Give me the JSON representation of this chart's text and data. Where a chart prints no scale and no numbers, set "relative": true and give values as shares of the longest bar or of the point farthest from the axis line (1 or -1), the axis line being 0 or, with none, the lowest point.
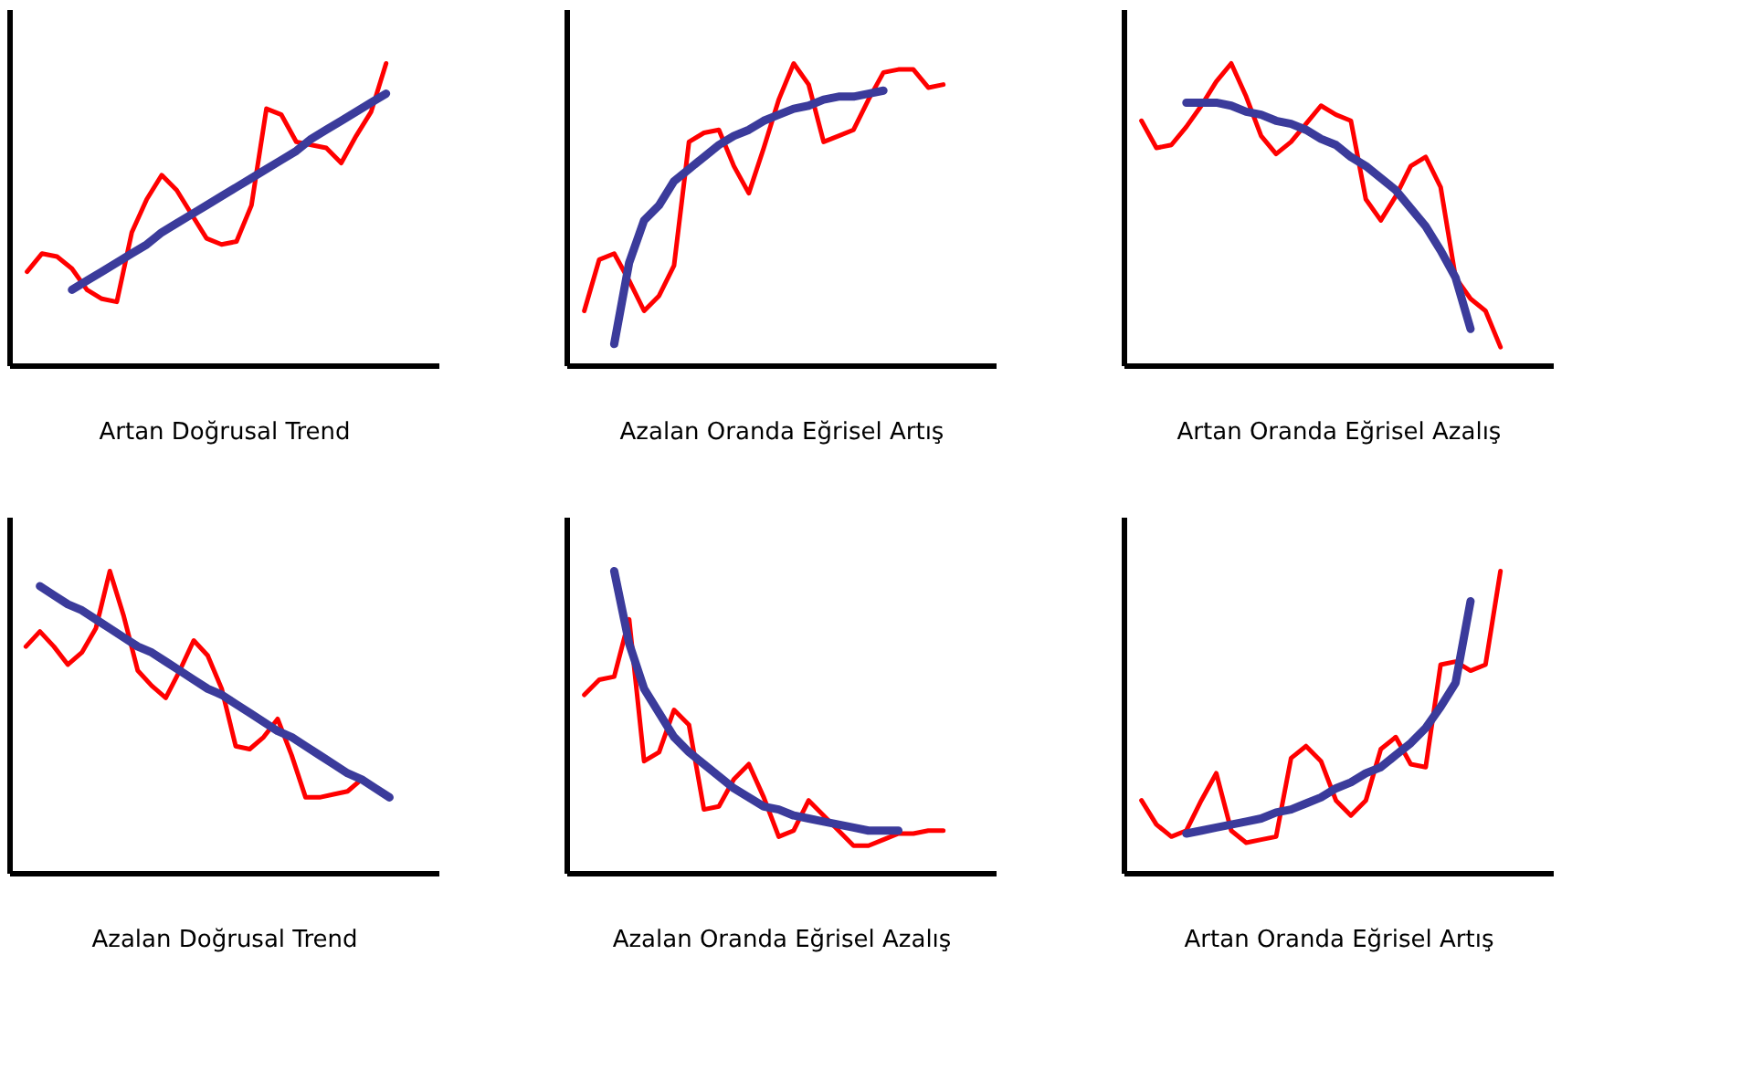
{
  "chart_data": [
    {
      "type": "line",
      "relative": true,
      "tick_labels": false,
      "xlabel": "Artan Doğrusal Trend",
      "categories": [
        null,
        null,
        null,
        null,
        null,
        null,
        null,
        null,
        null,
        null,
        null,
        null,
        null,
        null,
        null,
        null,
        null,
        null,
        null,
        null,
        null,
        null,
        null,
        null,
        null
      ],
      "series": [
        {
          "color": "#ff0000",
          "values": [
            0.31,
            0.37,
            0.36,
            0.32,
            0.25,
            0.22,
            0.21,
            0.44,
            0.55,
            0.63,
            0.58,
            0.5,
            0.42,
            0.4,
            0.41,
            0.53,
            0.85,
            0.83,
            0.74,
            0.73,
            0.72,
            0.67,
            0.76,
            0.84,
            1.0
          ]
        },
        {
          "color": "#3b3b9b",
          "values": [
            null,
            null,
            null,
            0.25,
            0.28,
            0.31,
            0.34,
            0.37,
            0.4,
            0.44,
            0.47,
            0.5,
            0.53,
            0.56,
            0.59,
            0.62,
            0.65,
            0.68,
            0.71,
            0.75,
            0.78,
            0.81,
            0.84,
            0.87,
            0.9
          ]
        }
      ]
    },
    {
      "type": "line",
      "relative": true,
      "tick_labels": false,
      "xlabel": "Azalan Oranda Eğrisel Artış",
      "categories": [
        null,
        null,
        null,
        null,
        null,
        null,
        null,
        null,
        null,
        null,
        null,
        null,
        null,
        null,
        null,
        null,
        null,
        null,
        null,
        null,
        null,
        null,
        null,
        null,
        null
      ],
      "series": [
        {
          "color": "#ff0000",
          "values": [
            0.18,
            0.35,
            0.37,
            0.28,
            0.18,
            0.23,
            0.33,
            0.74,
            0.77,
            0.78,
            0.66,
            0.57,
            0.72,
            0.88,
            1.0,
            0.93,
            0.74,
            0.76,
            0.78,
            0.88,
            0.97,
            0.98,
            0.98,
            0.92,
            0.93
          ]
        },
        {
          "color": "#3b3b9b",
          "values": [
            null,
            null,
            0.07,
            0.34,
            0.48,
            0.53,
            0.61,
            0.65,
            0.69,
            0.73,
            0.76,
            0.78,
            0.81,
            0.83,
            0.85,
            0.86,
            0.88,
            0.89,
            0.89,
            0.9,
            0.91,
            null,
            null,
            null,
            null
          ]
        }
      ]
    },
    {
      "type": "line",
      "relative": true,
      "tick_labels": false,
      "xlabel": "Artan Oranda Eğrisel Azalış",
      "categories": [
        null,
        null,
        null,
        null,
        null,
        null,
        null,
        null,
        null,
        null,
        null,
        null,
        null,
        null,
        null,
        null,
        null,
        null,
        null,
        null,
        null,
        null,
        null,
        null,
        null
      ],
      "series": [
        {
          "color": "#ff0000",
          "values": [
            0.81,
            0.72,
            0.73,
            0.79,
            0.86,
            0.94,
            1.0,
            0.89,
            0.76,
            0.7,
            0.74,
            0.8,
            0.86,
            0.83,
            0.81,
            0.55,
            0.48,
            0.56,
            0.66,
            0.69,
            0.59,
            0.29,
            0.22,
            0.18,
            0.06
          ]
        },
        {
          "color": "#3b3b9b",
          "values": [
            null,
            null,
            null,
            0.87,
            0.87,
            0.87,
            0.86,
            0.84,
            0.83,
            0.81,
            0.8,
            0.78,
            0.75,
            0.73,
            0.69,
            0.66,
            0.62,
            0.58,
            0.52,
            0.46,
            0.38,
            0.29,
            0.12,
            null,
            null
          ]
        }
      ]
    },
    {
      "type": "line",
      "relative": true,
      "tick_labels": false,
      "xlabel": "Azalan Doğrusal Trend",
      "categories": [
        null,
        null,
        null,
        null,
        null,
        null,
        null,
        null,
        null,
        null,
        null,
        null,
        null,
        null,
        null,
        null,
        null,
        null,
        null,
        null,
        null,
        null,
        null,
        null,
        null,
        null,
        null
      ],
      "series": [
        {
          "color": "#ff0000",
          "values": [
            0.75,
            0.8,
            0.75,
            0.69,
            0.73,
            0.81,
            1.0,
            0.85,
            0.67,
            0.62,
            0.58,
            0.67,
            0.77,
            0.72,
            0.61,
            0.42,
            0.41,
            0.45,
            0.51,
            0.39,
            0.25,
            0.25,
            0.26,
            0.27,
            0.31,
            null,
            null
          ]
        },
        {
          "color": "#3b3b9b",
          "values": [
            null,
            0.95,
            0.92,
            0.89,
            0.87,
            0.84,
            0.81,
            0.78,
            0.75,
            0.73,
            0.7,
            0.67,
            0.64,
            0.61,
            0.59,
            0.56,
            0.53,
            0.5,
            0.47,
            0.45,
            0.42,
            0.39,
            0.36,
            0.33,
            0.31,
            0.28,
            0.25
          ]
        }
      ]
    },
    {
      "type": "line",
      "relative": true,
      "tick_labels": false,
      "xlabel": "Azalan Oranda Eğrisel Azalış",
      "categories": [
        null,
        null,
        null,
        null,
        null,
        null,
        null,
        null,
        null,
        null,
        null,
        null,
        null,
        null,
        null,
        null,
        null,
        null,
        null,
        null,
        null,
        null,
        null,
        null,
        null
      ],
      "series": [
        {
          "color": "#ff0000",
          "values": [
            0.59,
            0.64,
            0.65,
            0.84,
            0.37,
            0.4,
            0.54,
            0.49,
            0.21,
            0.22,
            0.31,
            0.36,
            0.25,
            0.12,
            0.14,
            0.24,
            0.19,
            0.14,
            0.09,
            0.09,
            0.11,
            0.13,
            0.13,
            0.14,
            0.14
          ]
        },
        {
          "color": "#3b3b9b",
          "values": [
            null,
            null,
            1.0,
            0.76,
            0.61,
            0.53,
            0.45,
            0.4,
            0.36,
            0.32,
            0.28,
            0.25,
            0.22,
            0.21,
            0.19,
            0.18,
            0.17,
            0.16,
            0.15,
            0.14,
            0.14,
            0.14,
            null,
            null,
            null
          ]
        }
      ]
    },
    {
      "type": "line",
      "relative": true,
      "tick_labels": false,
      "xlabel": "Artan Oranda Eğrisel Artış",
      "categories": [
        null,
        null,
        null,
        null,
        null,
        null,
        null,
        null,
        null,
        null,
        null,
        null,
        null,
        null,
        null,
        null,
        null,
        null,
        null,
        null,
        null,
        null,
        null,
        null,
        null
      ],
      "series": [
        {
          "color": "#ff0000",
          "values": [
            0.24,
            0.16,
            0.12,
            0.14,
            0.24,
            0.33,
            0.14,
            0.1,
            0.11,
            0.12,
            0.38,
            0.42,
            0.37,
            0.24,
            0.19,
            0.24,
            0.41,
            0.45,
            0.36,
            0.35,
            0.69,
            0.7,
            0.67,
            0.69,
            1.0
          ]
        },
        {
          "color": "#3b3b9b",
          "values": [
            null,
            null,
            null,
            0.13,
            0.14,
            0.15,
            0.16,
            0.17,
            0.18,
            0.2,
            0.21,
            0.23,
            0.25,
            0.28,
            0.3,
            0.33,
            0.35,
            0.39,
            0.43,
            0.48,
            0.55,
            0.63,
            0.9,
            null,
            null
          ]
        }
      ]
    }
  ]
}
